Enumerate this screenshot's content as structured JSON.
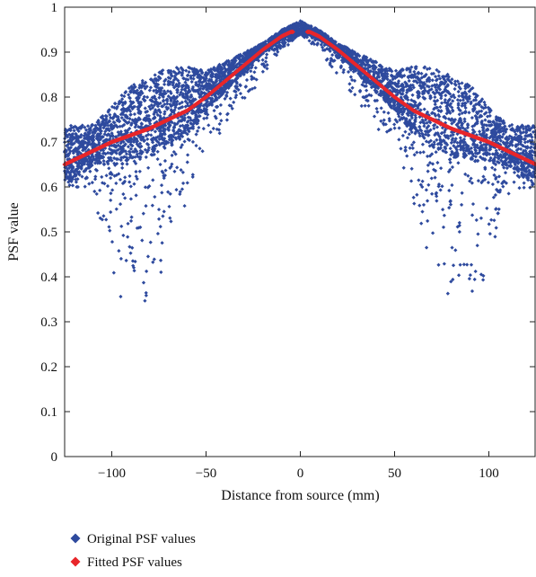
{
  "chart_data": {
    "type": "scatter",
    "title": "",
    "xlabel": "Distance from source (mm)",
    "ylabel": "PSF value",
    "xlim": [
      -125,
      125
    ],
    "ylim": [
      0,
      1
    ],
    "xticks": [
      -100,
      -50,
      0,
      50,
      100
    ],
    "xtick_labels": [
      "−100",
      "−50",
      "0",
      "50",
      "100"
    ],
    "yticks": [
      0,
      0.1,
      0.2,
      0.3,
      0.4,
      0.5,
      0.6,
      0.7,
      0.8,
      0.9,
      1
    ],
    "ytick_labels": [
      "0",
      "0.1",
      "0.2",
      "0.3",
      "0.4",
      "0.5",
      "0.6",
      "0.7",
      "0.8",
      "0.9",
      "1"
    ],
    "grid": false,
    "legend_position": "bottom-left",
    "series": [
      {
        "name": "Original PSF values",
        "color": "#2e4a9e",
        "marker": "diamond",
        "band": {
          "x": [
            -125,
            -110,
            -100,
            -90,
            -80,
            -70,
            -60,
            -50,
            -40,
            -30,
            -20,
            -10,
            -5,
            0,
            5,
            10,
            20,
            30,
            40,
            50,
            60,
            70,
            80,
            90,
            100,
            110,
            125
          ],
          "upper": [
            0.74,
            0.74,
            0.78,
            0.83,
            0.85,
            0.87,
            0.87,
            0.86,
            0.88,
            0.9,
            0.92,
            0.95,
            0.96,
            0.97,
            0.96,
            0.95,
            0.92,
            0.9,
            0.88,
            0.86,
            0.87,
            0.87,
            0.85,
            0.83,
            0.78,
            0.74,
            0.74
          ],
          "lower": [
            0.6,
            0.58,
            0.4,
            0.28,
            0.3,
            0.4,
            0.55,
            0.68,
            0.72,
            0.78,
            0.84,
            0.9,
            0.92,
            0.94,
            0.92,
            0.9,
            0.84,
            0.78,
            0.72,
            0.68,
            0.55,
            0.4,
            0.3,
            0.28,
            0.4,
            0.58,
            0.6
          ]
        }
      },
      {
        "name": "Fitted PSF values",
        "color": "#e8262a",
        "marker": "diamond",
        "x": [
          -125,
          -110,
          -100,
          -90,
          -80,
          -70,
          -60,
          -50,
          -40,
          -30,
          -20,
          -10,
          -5,
          0,
          5,
          10,
          20,
          30,
          40,
          50,
          60,
          70,
          80,
          90,
          100,
          110,
          125
        ],
        "y": [
          0.65,
          0.68,
          0.7,
          0.715,
          0.73,
          0.75,
          0.77,
          0.8,
          0.835,
          0.87,
          0.905,
          0.935,
          0.945,
          0.945,
          0.945,
          0.935,
          0.905,
          0.87,
          0.835,
          0.8,
          0.77,
          0.75,
          0.73,
          0.715,
          0.7,
          0.68,
          0.65
        ]
      }
    ]
  }
}
